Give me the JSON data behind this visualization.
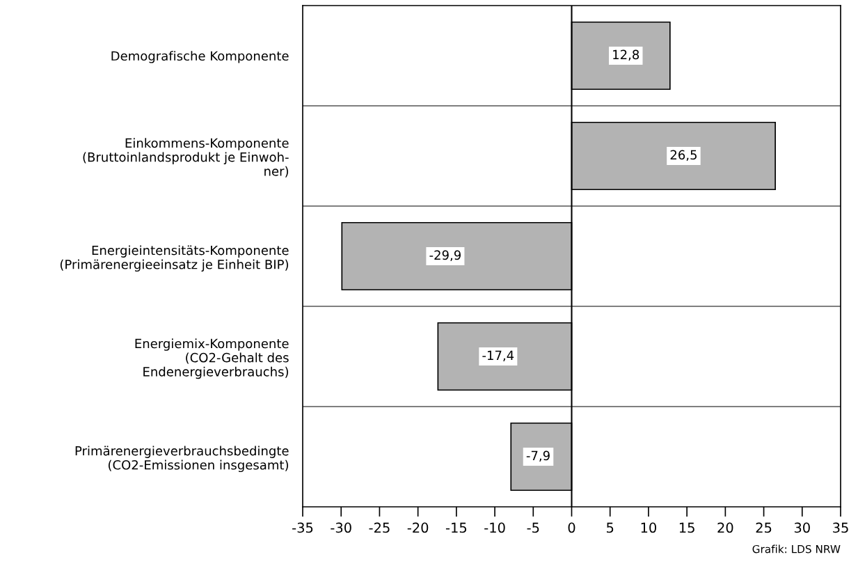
{
  "chart_data": {
    "type": "bar",
    "orientation": "horizontal",
    "categories": [
      "Demografische Komponente",
      "Einkommens-Komponente\n(Bruttoinlandsprodukt je Einwoh-\nner)",
      "Energieintensitäts-Komponente\n(Primärenergieeinsatz je Einheit BIP)",
      "Energiemix-Komponente\n(CO2-Gehalt des\nEndenergieverbrauchs)",
      "Primärenergieverbrauchsbedingte\n(CO2-Emissionen insgesamt)"
    ],
    "values": [
      12.8,
      26.5,
      -29.9,
      -17.4,
      -7.9
    ],
    "value_labels": [
      "12,8",
      "26,5",
      "-29,9",
      "-17,4",
      "-7,9"
    ],
    "color": "#b3b3b3",
    "xlim": [
      -35,
      35
    ],
    "xticks": [
      -35,
      -30,
      -25,
      -20,
      -15,
      -10,
      -5,
      0,
      5,
      10,
      15,
      20,
      25,
      30,
      35
    ],
    "grid": "y",
    "annotations": [
      "Grafik: LDS NRW"
    ]
  }
}
